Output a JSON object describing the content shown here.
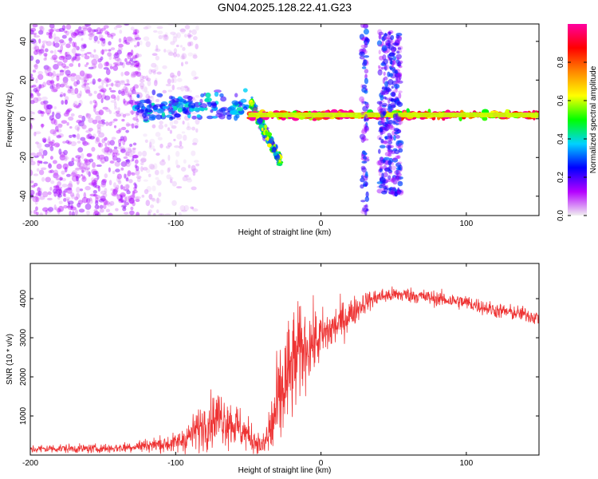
{
  "title": "GN04.2025.128.22.41.G23",
  "chart_data": [
    {
      "type": "heatmap",
      "xlabel": "Height of straight line (km)",
      "ylabel": "Frequency (Hz)",
      "xlim": [
        -200,
        150
      ],
      "ylim": [
        -50,
        49
      ],
      "xticks": [
        -200,
        -100,
        0,
        100
      ],
      "yticks": [
        -40,
        -20,
        0,
        20,
        40
      ],
      "colorbar": {
        "label": "Normalized spectral amplitude",
        "range": [
          0,
          1
        ],
        "ticks": [
          0.0,
          0.2,
          0.4,
          0.6,
          0.8
        ],
        "tick_labels": [
          "0.0",
          "0.2",
          "0.4",
          "0.6",
          "0.8"
        ],
        "colormap": [
          "#f0f0f0",
          "#b400ff",
          "#0000ff",
          "#00d2ff",
          "#00ff00",
          "#ffff00",
          "#ff8800",
          "#ff0000",
          "#ff00a0"
        ]
      },
      "features": [
        {
          "description": "diffuse purple speckle",
          "x_range": [
            -200,
            -125
          ],
          "freq_range": [
            -50,
            49
          ],
          "amplitude": 0.1
        },
        {
          "description": "sparse light speckle",
          "x_range": [
            -125,
            -85
          ],
          "freq_range": [
            -50,
            49
          ],
          "amplitude": 0.05
        },
        {
          "description": "carrier band",
          "x_range": [
            -128,
            -50
          ],
          "freq_center": 6,
          "amplitude": 0.3
        },
        {
          "description": "descending streak",
          "x_range": [
            -48,
            -28
          ],
          "freq_range": [
            8,
            -22
          ],
          "amplitude": 0.4
        },
        {
          "description": "carrier tone",
          "x_range": [
            -50,
            150
          ],
          "freq_center": 2,
          "amplitude": 0.8
        },
        {
          "description": "vertical burst",
          "x_range": [
            28,
            32
          ],
          "freq_range": [
            -50,
            49
          ],
          "amplitude": 0.2
        },
        {
          "description": "vertical burst",
          "x_range": [
            40,
            55
          ],
          "freq_range": [
            -40,
            45
          ],
          "amplitude": 0.2
        }
      ]
    },
    {
      "type": "line",
      "xlabel": "Height of straight line (km)",
      "ylabel": "SNR (10 * v/v)",
      "xlim": [
        -200,
        150
      ],
      "ylim": [
        0,
        4900
      ],
      "xticks": [
        -200,
        -100,
        0,
        100
      ],
      "yticks": [
        1000,
        2000,
        3000,
        4000
      ],
      "color": "#ee3333",
      "series": [
        {
          "x": [
            -200,
            -180,
            -160,
            -140,
            -120,
            -100,
            -90,
            -80,
            -70,
            -60,
            -50,
            -40,
            -35,
            -30,
            -25,
            -20,
            -15,
            -10,
            0,
            10,
            20,
            30,
            40,
            50,
            60,
            70,
            80,
            90,
            100,
            110,
            120,
            130,
            140,
            150
          ],
          "y": [
            150,
            170,
            160,
            180,
            250,
            300,
            500,
            800,
            1000,
            800,
            500,
            200,
            600,
            1200,
            1800,
            2200,
            2600,
            2800,
            3000,
            3300,
            3600,
            3900,
            4050,
            4100,
            4100,
            4050,
            4000,
            3950,
            3900,
            3800,
            3700,
            3650,
            3600,
            3500
          ],
          "noise": [
            80,
            80,
            80,
            90,
            120,
            180,
            300,
            450,
            500,
            450,
            300,
            200,
            700,
            900,
            1100,
            1000,
            900,
            700,
            500,
            400,
            300,
            200,
            150,
            140,
            140,
            140,
            140,
            140,
            140,
            140,
            140,
            140,
            140,
            140
          ]
        }
      ]
    }
  ]
}
